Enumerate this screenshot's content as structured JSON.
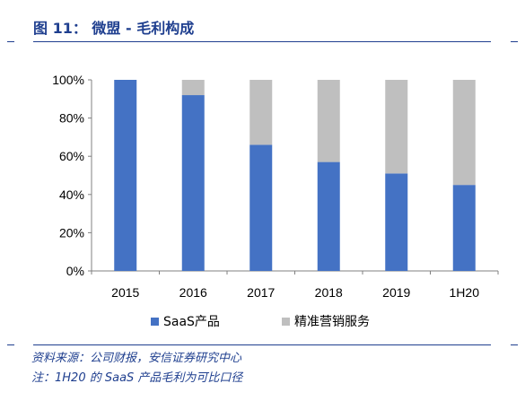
{
  "header": {
    "title": "图 11：  微盟 - 毛利构成"
  },
  "colors": {
    "title_blue": "#1f3f8f",
    "saas_blue": "#4472c4",
    "service_gray": "#bfbfbf",
    "axis": "#808080"
  },
  "chart_data": {
    "type": "bar",
    "stacked": true,
    "categories": [
      "2015",
      "2016",
      "2017",
      "2018",
      "2019",
      "1H20"
    ],
    "series": [
      {
        "name": "SaaS产品",
        "values": [
          100,
          92,
          66,
          57,
          51,
          45
        ]
      },
      {
        "name": "精准营销服务",
        "values": [
          0,
          8,
          34,
          43,
          49,
          55
        ]
      }
    ],
    "y_ticks": [
      "0%",
      "20%",
      "40%",
      "60%",
      "80%",
      "100%"
    ],
    "ylim": [
      0,
      100
    ],
    "legend_position": "bottom",
    "grid": false
  },
  "footer": {
    "source": "资料来源：公司财报，安信证券研究中心",
    "note": "注：1H20 的 SaaS 产品毛利为可比口径"
  }
}
